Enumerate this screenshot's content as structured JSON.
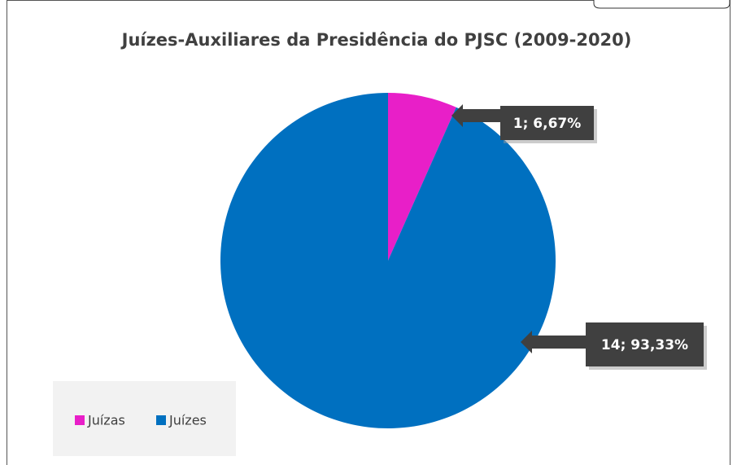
{
  "chart_data": {
    "type": "pie",
    "title": "Juízes-Auxiliares da Presidência do PJSC (2009-2020)",
    "categories": [
      "Juízas",
      "Juízes"
    ],
    "values": [
      1,
      14
    ],
    "value_labels": [
      "1; 6,67%",
      "14; 93,33%"
    ],
    "colors": [
      "#e81fc8",
      "#0070c0"
    ],
    "legend": "bottom-left"
  }
}
